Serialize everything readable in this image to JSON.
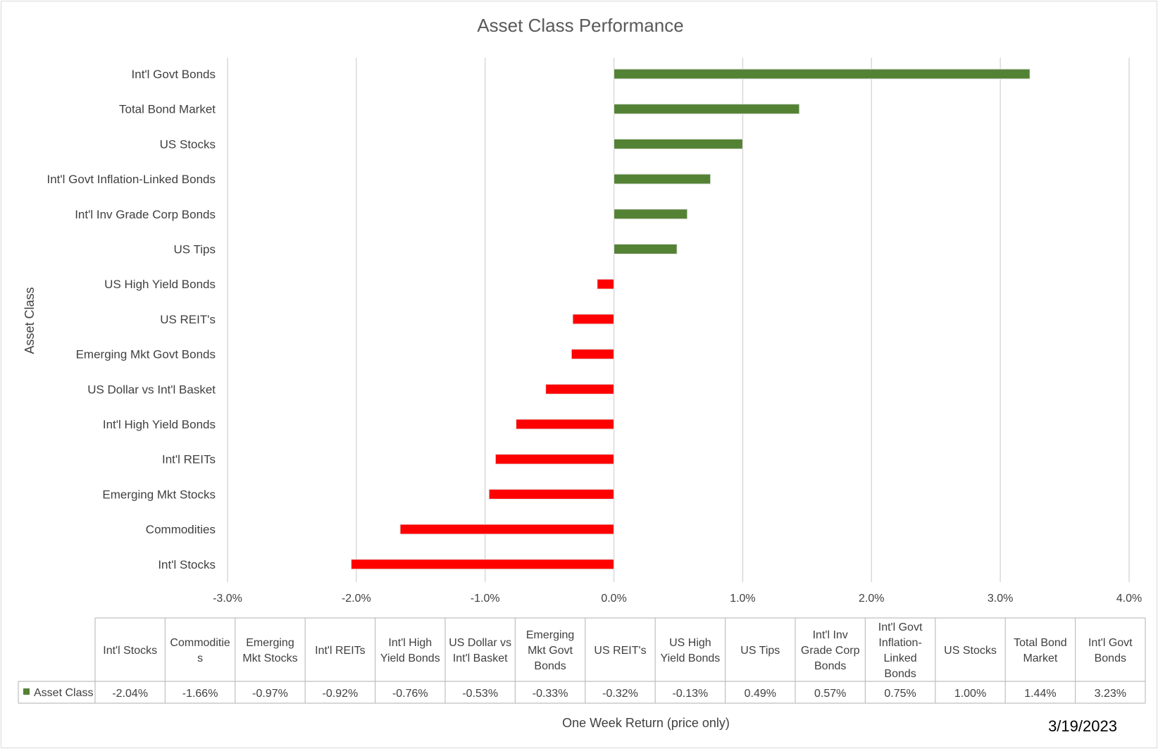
{
  "chart_data": {
    "type": "bar",
    "orientation": "horizontal",
    "title": "Asset Class Performance",
    "ylabel": "Asset Class",
    "xlabel": "One Week Return (price only)",
    "date": "3/19/2023",
    "xlim": [
      -3.0,
      4.0
    ],
    "x_ticks": [
      "-3.0%",
      "-2.0%",
      "-1.0%",
      "0.0%",
      "1.0%",
      "2.0%",
      "3.0%",
      "4.0%"
    ],
    "grid": true,
    "legend": "in data table",
    "positive_color": "#548235",
    "negative_color": "#ff0000",
    "series": [
      {
        "name": "Asset Class",
        "categories": [
          "Int'l Stocks",
          "Commodities",
          "Emerging Mkt Stocks",
          "Int'l REITs",
          "Int'l High Yield Bonds",
          "US Dollar vs Int'l Basket",
          "Emerging Mkt Govt Bonds",
          "US REIT's",
          "US High Yield Bonds",
          "US Tips",
          "Int'l Inv Grade Corp Bonds",
          "Int'l Govt Inflation-Linked Bonds",
          "US Stocks",
          "Total Bond Market",
          "Int'l Govt Bonds"
        ],
        "values": [
          -2.04,
          -1.66,
          -0.97,
          -0.92,
          -0.76,
          -0.53,
          -0.33,
          -0.32,
          -0.13,
          0.49,
          0.57,
          0.75,
          1.0,
          1.44,
          3.23
        ]
      }
    ],
    "table": {
      "headers": [
        [
          "Int'l Stocks"
        ],
        [
          "Commoditie",
          "s"
        ],
        [
          "Emerging",
          "Mkt Stocks"
        ],
        [
          "Int'l REITs"
        ],
        [
          "Int'l High",
          "Yield Bonds"
        ],
        [
          "US Dollar vs",
          "Int'l Basket"
        ],
        [
          "Emerging",
          "Mkt Govt",
          "Bonds"
        ],
        [
          "US REIT's"
        ],
        [
          "US High",
          "Yield Bonds"
        ],
        [
          "US Tips"
        ],
        [
          "Int'l Inv",
          "Grade Corp",
          "Bonds"
        ],
        [
          "Int'l Govt",
          "Inflation-",
          "Linked",
          "Bonds"
        ],
        [
          "US Stocks"
        ],
        [
          "Total Bond",
          "Market"
        ],
        [
          "Int'l Govt",
          "Bonds"
        ]
      ],
      "row_label": "Asset Class",
      "values": [
        "-2.04%",
        "-1.66%",
        "-0.97%",
        "-0.92%",
        "-0.76%",
        "-0.53%",
        "-0.33%",
        "-0.32%",
        "-0.13%",
        "0.49%",
        "0.57%",
        "0.75%",
        "1.00%",
        "1.44%",
        "3.23%"
      ]
    }
  }
}
